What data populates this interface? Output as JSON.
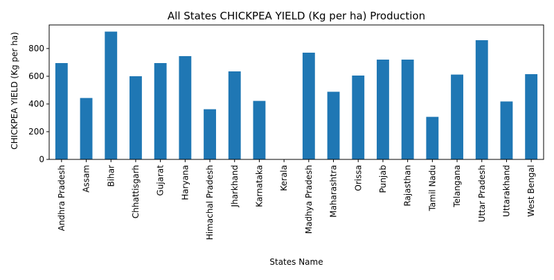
{
  "chart_data": {
    "type": "bar",
    "title": "All States CHICKPEA YIELD (Kg per ha) Production",
    "xlabel": "States Name",
    "ylabel": "CHICKPEA YIELD (Kg per ha)",
    "ylim": [
      0,
      970
    ],
    "yticks": [
      0,
      200,
      400,
      600,
      800
    ],
    "grid": false,
    "bar_color": "#1f77b4",
    "categories": [
      "Andhra Pradesh",
      "Assam",
      "Bihar",
      "Chhattisgarh",
      "Gujarat",
      "Haryana",
      "Himachal Pradesh",
      "Jharkhand",
      "Karnataka",
      "Kerala",
      "Madhya Pradesh",
      "Maharashtra",
      "Orissa",
      "Punjab",
      "Rajasthan",
      "Tamil Nadu",
      "Telangana",
      "Uttar Pradesh",
      "Uttarakhand",
      "West Bengal"
    ],
    "values": [
      695,
      443,
      922,
      600,
      695,
      745,
      362,
      635,
      422,
      0,
      770,
      488,
      605,
      720,
      720,
      307,
      612,
      860,
      418,
      615
    ]
  }
}
